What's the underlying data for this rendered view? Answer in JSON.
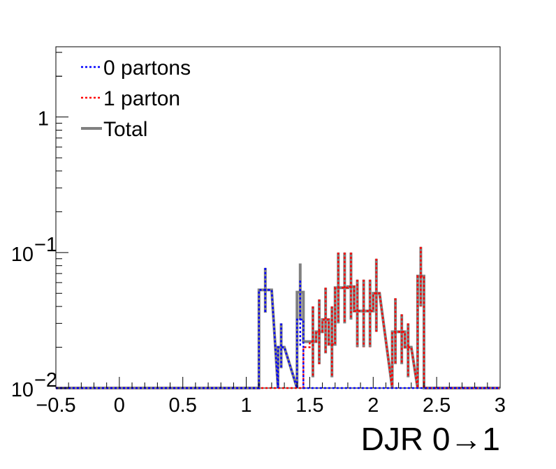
{
  "chart_data": {
    "type": "histogram",
    "xlabel": "DJR 0→1",
    "ylabel": "",
    "xlim": [
      -0.5,
      3.0
    ],
    "ylim": [
      0.01,
      3.3
    ],
    "y_scale": "log",
    "bin_width": 0.1,
    "x_ticks": [
      {
        "value": -0.5,
        "label": "−0.5"
      },
      {
        "value": 0,
        "label": "0"
      },
      {
        "value": 0.5,
        "label": "0.5"
      },
      {
        "value": 1,
        "label": "1"
      },
      {
        "value": 1.5,
        "label": "1.5"
      },
      {
        "value": 2,
        "label": "2"
      },
      {
        "value": 2.5,
        "label": "2.5"
      },
      {
        "value": 3,
        "label": "3"
      }
    ],
    "y_ticks": [
      {
        "value": 0.01,
        "base": "10",
        "exp": "−2"
      },
      {
        "value": 0.1,
        "base": "10",
        "exp": "−1"
      },
      {
        "value": 1,
        "base": "1",
        "exp": ""
      }
    ],
    "legend_position": "top-left",
    "series": [
      {
        "name": "0 partons",
        "color": "#0000ff",
        "style": "dotted",
        "bins": [
          {
            "x0": 1.1,
            "x1": 1.2,
            "y": 0.053,
            "err_lo": 0.036,
            "err_hi": 0.077
          },
          {
            "x0": 1.25,
            "x1": 1.3,
            "y": 0.02,
            "err_lo": 0.014,
            "err_hi": 0.03
          },
          {
            "x0": 1.4,
            "x1": 1.45,
            "y": 0.032,
            "err_lo": 0.02,
            "err_hi": 0.062
          }
        ]
      },
      {
        "name": "1 parton",
        "color": "#ff0000",
        "style": "dotted",
        "bins": [
          {
            "x0": 1.45,
            "x1": 1.5,
            "y": 0.02
          },
          {
            "x0": 1.5,
            "x1": 1.55,
            "y": 0.022,
            "err_lo": 0.012,
            "err_hi": 0.04
          },
          {
            "x0": 1.55,
            "x1": 1.6,
            "y": 0.026,
            "err_lo": 0.015,
            "err_hi": 0.045
          },
          {
            "x0": 1.6,
            "x1": 1.65,
            "y": 0.032,
            "err_lo": 0.018,
            "err_hi": 0.055
          },
          {
            "x0": 1.65,
            "x1": 1.7,
            "y": 0.021,
            "err_lo": 0.012,
            "err_hi": 0.04
          },
          {
            "x0": 1.7,
            "x1": 1.75,
            "y": 0.055,
            "err_lo": 0.03,
            "err_hi": 0.1
          },
          {
            "x0": 1.75,
            "x1": 1.8,
            "y": 0.055,
            "err_lo": 0.03,
            "err_hi": 0.1
          },
          {
            "x0": 1.8,
            "x1": 1.85,
            "y": 0.056,
            "err_lo": 0.032,
            "err_hi": 0.1
          },
          {
            "x0": 1.85,
            "x1": 1.9,
            "y": 0.037,
            "err_lo": 0.02,
            "err_hi": 0.063
          },
          {
            "x0": 1.9,
            "x1": 1.95,
            "y": 0.037,
            "err_lo": 0.02,
            "err_hi": 0.063
          },
          {
            "x0": 1.95,
            "x1": 2.0,
            "y": 0.037,
            "err_lo": 0.02,
            "err_hi": 0.063
          },
          {
            "x0": 2.0,
            "x1": 2.05,
            "y": 0.05,
            "err_lo": 0.026,
            "err_hi": 0.09
          },
          {
            "x0": 2.15,
            "x1": 2.2,
            "y": 0.026,
            "err_lo": 0.015,
            "err_hi": 0.046
          },
          {
            "x0": 2.2,
            "x1": 2.25,
            "y": 0.026,
            "err_lo": 0.015,
            "err_hi": 0.035
          },
          {
            "x0": 2.25,
            "x1": 2.3,
            "y": 0.02,
            "err_lo": 0.012,
            "err_hi": 0.03
          },
          {
            "x0": 2.35,
            "x1": 2.4,
            "y": 0.067,
            "err_lo": 0.04,
            "err_hi": 0.11
          }
        ]
      },
      {
        "name": "Total",
        "color": "#808080",
        "style": "solid",
        "bins": [
          {
            "x0": 1.1,
            "x1": 1.2,
            "y": 0.053,
            "err_lo": 0.036,
            "err_hi": 0.077
          },
          {
            "x0": 1.25,
            "x1": 1.3,
            "y": 0.02,
            "err_lo": 0.014,
            "err_hi": 0.03
          },
          {
            "x0": 1.4,
            "x1": 1.45,
            "y": 0.051,
            "err_lo": 0.032,
            "err_hi": 0.083
          },
          {
            "x0": 1.45,
            "x1": 1.5,
            "y": 0.022
          },
          {
            "x0": 1.5,
            "x1": 1.55,
            "y": 0.022,
            "err_lo": 0.012,
            "err_hi": 0.04
          },
          {
            "x0": 1.55,
            "x1": 1.6,
            "y": 0.026,
            "err_lo": 0.015,
            "err_hi": 0.045
          },
          {
            "x0": 1.6,
            "x1": 1.65,
            "y": 0.032,
            "err_lo": 0.018,
            "err_hi": 0.055
          },
          {
            "x0": 1.65,
            "x1": 1.7,
            "y": 0.021,
            "err_lo": 0.012,
            "err_hi": 0.04
          },
          {
            "x0": 1.7,
            "x1": 1.75,
            "y": 0.055,
            "err_lo": 0.03,
            "err_hi": 0.1
          },
          {
            "x0": 1.75,
            "x1": 1.8,
            "y": 0.055,
            "err_lo": 0.03,
            "err_hi": 0.1
          },
          {
            "x0": 1.8,
            "x1": 1.85,
            "y": 0.056,
            "err_lo": 0.032,
            "err_hi": 0.1
          },
          {
            "x0": 1.85,
            "x1": 1.9,
            "y": 0.037,
            "err_lo": 0.02,
            "err_hi": 0.063
          },
          {
            "x0": 1.9,
            "x1": 1.95,
            "y": 0.037,
            "err_lo": 0.02,
            "err_hi": 0.063
          },
          {
            "x0": 1.95,
            "x1": 2.0,
            "y": 0.037,
            "err_lo": 0.02,
            "err_hi": 0.063
          },
          {
            "x0": 2.0,
            "x1": 2.05,
            "y": 0.05,
            "err_lo": 0.026,
            "err_hi": 0.09
          },
          {
            "x0": 2.15,
            "x1": 2.2,
            "y": 0.026,
            "err_lo": 0.015,
            "err_hi": 0.046
          },
          {
            "x0": 2.2,
            "x1": 2.25,
            "y": 0.026,
            "err_lo": 0.015,
            "err_hi": 0.035
          },
          {
            "x0": 2.25,
            "x1": 2.3,
            "y": 0.02,
            "err_lo": 0.012,
            "err_hi": 0.03
          },
          {
            "x0": 2.35,
            "x1": 2.4,
            "y": 0.067,
            "err_lo": 0.04,
            "err_hi": 0.11
          }
        ]
      }
    ]
  }
}
